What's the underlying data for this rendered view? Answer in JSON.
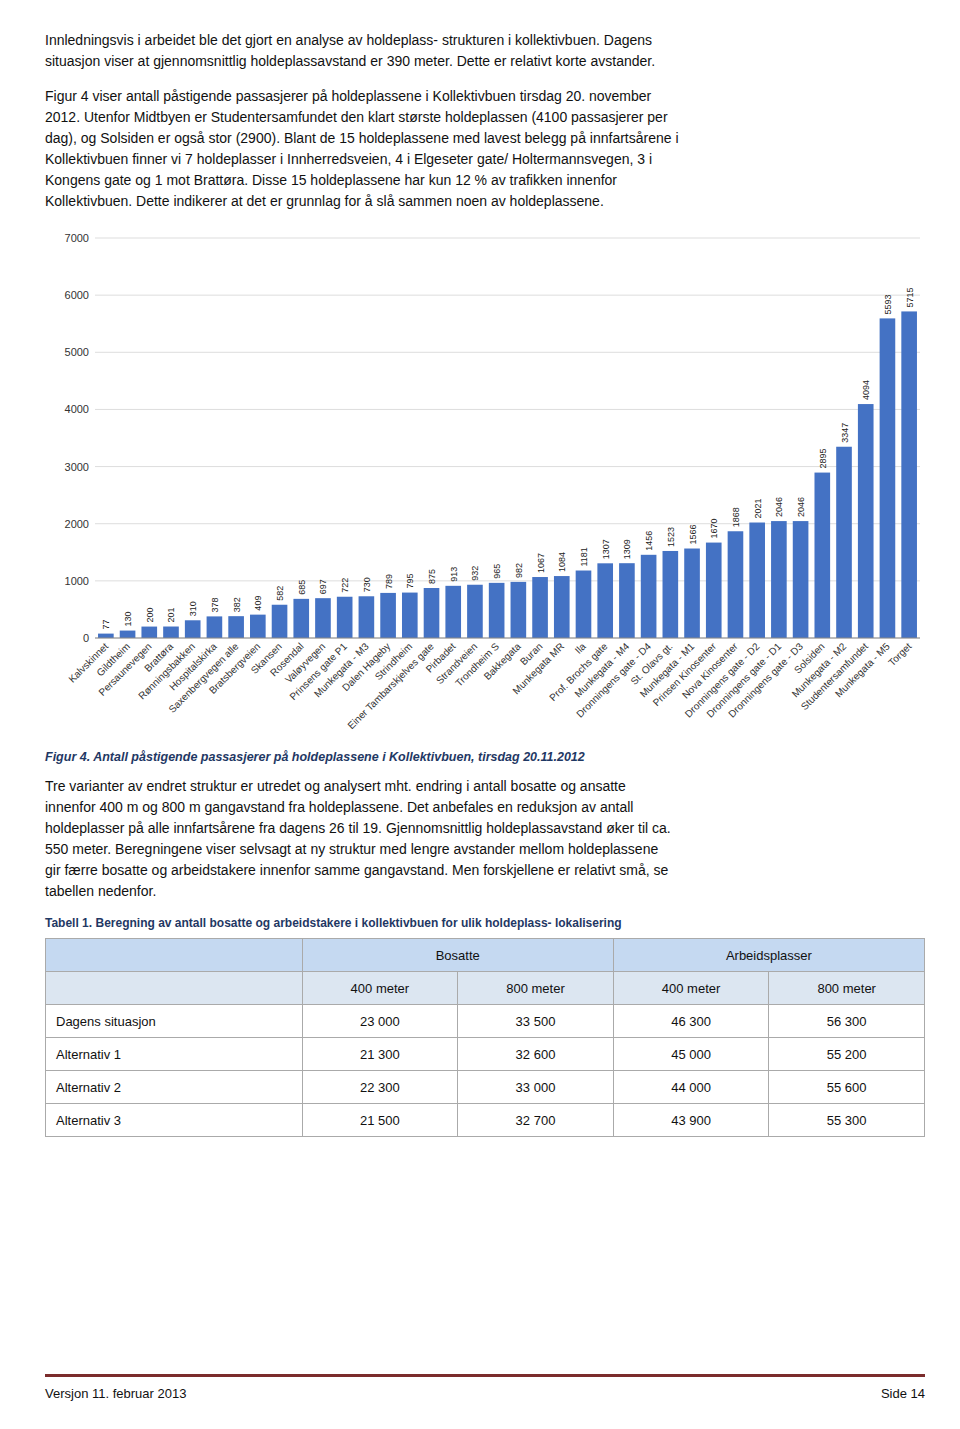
{
  "text_before": [
    "Innledningsvis i arbeidet ble det gjort en analyse av holdeplass- strukturen i kollektivbuen. Dagens",
    "situasjon viser at gjennomsnittlig holdeplassavstand er 390 meter. Dette er relativt korte avstander."
  ],
  "text_middle": [
    "Figur 4 viser antall påstigende passasjerer på holdeplassene i Kollektivbuen tirsdag 20. november",
    "2012. Utenfor Midtbyen er Studentersamfundet den klart største holdeplassen (4100 passasjerer per",
    "dag), og Solsiden er også stor (2900). Blant de 15 holdeplassene med lavest belegg på innfartsårene i",
    "Kollektivbuen finner vi 7 holdeplasser i Innherredsveien, 4 i Elgeseter gate/ Holtermannsvegen, 3 i",
    "Kongens gate og 1 mot Brattøra. Disse 15 holdeplassene har kun 12 % av trafikken innenfor",
    "Kollektivbuen. Dette indikerer at det er grunnlag for å slå sammen noen av holdeplassene."
  ],
  "chart_data": {
    "type": "bar",
    "title": "Figur 4. Antall påstigende passasjerer på holdeplassene i Kollektivbuen, tirsdag 20.11.2012",
    "categories": [
      "Kalvskinnet",
      "Gildtheim",
      "Persaunevegen",
      "Brattøra",
      "Rønningsbakken",
      "Hospitalskirka",
      "Saxenbergvegen alle",
      "Bratsbergveien",
      "Skansen",
      "Rosendal",
      "Valøyvegen",
      "Prinsens gate P1",
      "Munkegata - M3",
      "Dalen Hageby",
      "Strindheim",
      "Einer Tambarskjelves gate",
      "Pirbadet",
      "Strandveien",
      "Trondheim S",
      "Bakkegata",
      "Buran",
      "Munkegata MR",
      "Ila",
      "Prof. Brochs gate",
      "Munkegata - M4",
      "Dronningens gate - D4",
      "St. Olavs gt.",
      "Munkegata - M1",
      "Prinsen Kinosenter",
      "Nova Kinosenter",
      "Dronningens gate - D2",
      "Dronningens gate - D1",
      "Dronningens gate - D3",
      "Solsiden",
      "Munkegata - M2",
      "Studentersamfundet",
      "Munkegata - M5",
      "Torget"
    ],
    "values": [
      77,
      130,
      200,
      201,
      310,
      378,
      382,
      409,
      582,
      685,
      697,
      722,
      730,
      789,
      795,
      875,
      913,
      932,
      965,
      982,
      1067,
      1084,
      1181,
      1307,
      1309,
      1456,
      1523,
      1566,
      1670,
      1868,
      2021,
      2046,
      2046,
      2895,
      3347,
      4094,
      5593,
      5715
    ],
    "color": "#4472C4",
    "ylim": [
      0,
      7000
    ],
    "yticks": [
      0,
      1000,
      2000,
      3000,
      4000,
      5000,
      6000,
      7000
    ],
    "grid": true,
    "data_labels": true
  },
  "text_after": [
    "Tre varianter av endret struktur er utredet og analysert mht. endring i antall bosatte og ansatte",
    "innenfor 400 m og 800 m gangavstand fra holdeplassene. Det anbefales en reduksjon av antall",
    "holdeplasser på alle innfartsårene fra dagens 26 til 19. Gjennomsnittlig holdeplassavstand øker til ca.",
    "550 meter. Beregningene viser selvsagt at ny struktur med lengre avstander mellom holdeplassene",
    "gir færre bosatte og arbeidstakere innenfor samme gangavstand. Men forskjellene er relativt små, se",
    "tabellen nedenfor."
  ],
  "table": {
    "title": "Tabell 1. Beregning av antall bosatte og arbeidstakere i kollektivbuen for ulik holdeplass- lokalisering",
    "groups": [
      "Bosatte",
      "Arbeidsplasser"
    ],
    "subheaders": [
      "400 meter",
      "800 meter",
      "400 meter",
      "800 meter"
    ],
    "rows": [
      [
        "Dagens situasjon",
        "23 000",
        "33 500",
        "46 300",
        "56 300"
      ],
      [
        "Alternativ 1",
        "21 300",
        "32 600",
        "45 000",
        "55 200"
      ],
      [
        "Alternativ 2",
        "22 300",
        "33 000",
        "44 000",
        "55 600"
      ],
      [
        "Alternativ 3",
        "21 500",
        "32 700",
        "43 900",
        "55 300"
      ]
    ]
  },
  "footer_left": "Versjon 11. februar 2013",
  "footer_right": "Side 14"
}
